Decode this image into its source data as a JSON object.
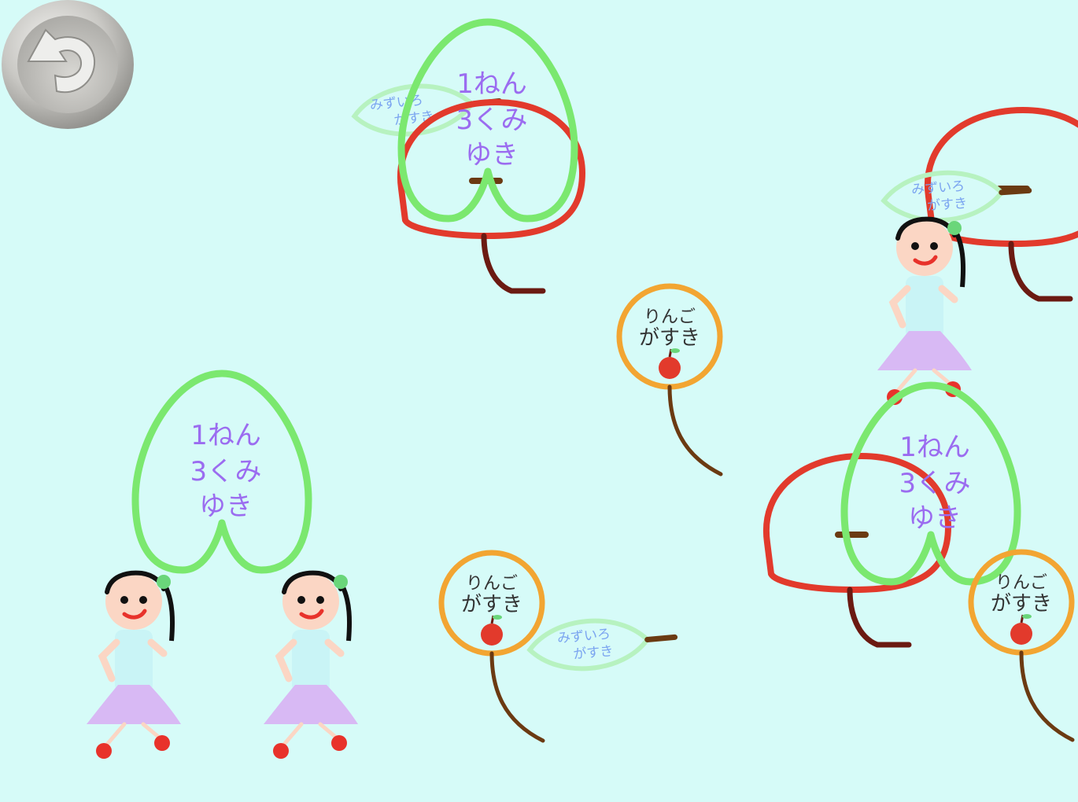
{
  "app": {
    "background_color": "#d6fbf8",
    "undo_button": {
      "icon": "undo-arrow-icon"
    }
  },
  "stickers": {
    "heart_text_lines": [
      "1ねん",
      "3くみ",
      "ゆき"
    ],
    "fan_text_lines": [
      "りんご",
      "がすき"
    ],
    "leaf_text_lines": [
      "みずいろ",
      "がすき"
    ]
  },
  "colors": {
    "heart_outline": "#7be86f",
    "heart_text": "#9b6cf0",
    "apple_outline": "#e23a2c",
    "stem": "#6b1a12",
    "fan_outline": "#f2a532",
    "fan_text": "#333333",
    "leaf_outline": "#b7f2c0",
    "leaf_text": "#7aa4f0",
    "girl_dress_top": "#c9f4f6",
    "girl_skirt": "#d8b9f4",
    "girl_shoes": "#e8322b",
    "girl_hair": "#111111",
    "girl_face": "#fbd6c4"
  }
}
